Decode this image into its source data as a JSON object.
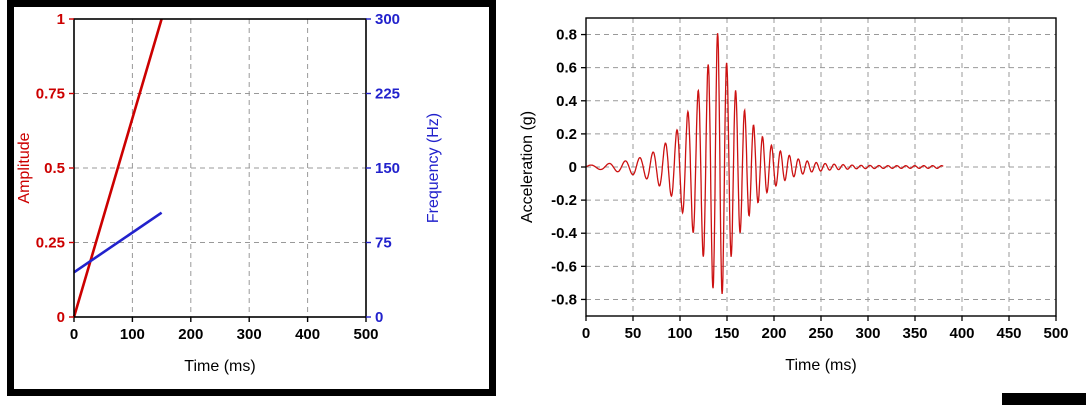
{
  "chart_data": [
    {
      "type": "line",
      "title": "",
      "xlabel": "Time (ms)",
      "ylabel_left": "Amplitude",
      "ylabel_right": "Frequency (Hz)",
      "xlim": [
        0,
        500
      ],
      "ylim_left": [
        0,
        1
      ],
      "ylim_right": [
        0,
        300
      ],
      "x_ticks": [
        0,
        100,
        200,
        300,
        400,
        500
      ],
      "x_tick_labels": [
        "0",
        "100",
        "200",
        "300",
        "400",
        "500"
      ],
      "y_left_ticks": [
        0,
        0.25,
        0.5,
        0.75,
        1
      ],
      "y_left_tick_labels": [
        "0",
        "0.25",
        "0.5",
        "0.75",
        "1"
      ],
      "y_right_ticks": [
        0,
        75,
        150,
        225,
        300
      ],
      "y_right_tick_labels": [
        "0",
        "75",
        "150",
        "225",
        "300"
      ],
      "grid_color": "#999999",
      "axis_color_left": "#cc0000",
      "axis_color_right": "#2222cc",
      "grid_on": true,
      "legend": "none",
      "series": [
        {
          "name": "Amplitude",
          "axis": "left",
          "color": "#cc0000",
          "points": [
            [
              0,
              0
            ],
            [
              150,
              1
            ]
          ]
        },
        {
          "name": "Frequency",
          "axis": "right",
          "color": "#2222cc",
          "points": [
            [
              0,
              45
            ],
            [
              150,
              105
            ]
          ]
        }
      ]
    },
    {
      "type": "line",
      "title": "",
      "xlabel": "Time (ms)",
      "ylabel": "Acceleration (g)",
      "xlim": [
        0,
        500
      ],
      "ylim": [
        -0.9,
        0.9
      ],
      "x_ticks": [
        0,
        50,
        100,
        150,
        200,
        250,
        300,
        350,
        400,
        450,
        500
      ],
      "x_tick_labels": [
        "0",
        "50",
        "100",
        "150",
        "200",
        "250",
        "300",
        "350",
        "400",
        "450",
        "500"
      ],
      "y_ticks": [
        0.8,
        0.6,
        0.4,
        0.2,
        0,
        -0.2,
        -0.4,
        -0.6,
        -0.8
      ],
      "y_tick_labels": [
        "0.8",
        "0.6",
        "0.4",
        "0.2",
        "0",
        "-0.2",
        "-0.4",
        "-0.6",
        "-0.8"
      ],
      "grid_color": "#999999",
      "line_color": "#cc1111",
      "grid_on": true,
      "legend": "none",
      "signal": {
        "name": "Acceleration",
        "type": "linear_swept_sine_burst",
        "t_start_ms": 0,
        "t_end_ms": 380,
        "sample_step_ms": 0.4,
        "freq_start_hz": 45,
        "freq_end_hz": 105,
        "sweep_end_ms": 150,
        "peak_acceleration_g": 0.82,
        "peak_time_ms": 140,
        "envelope_breakpoints": [
          [
            0,
            0.01
          ],
          [
            15,
            0.015
          ],
          [
            30,
            0.025
          ],
          [
            45,
            0.04
          ],
          [
            60,
            0.06
          ],
          [
            75,
            0.1
          ],
          [
            90,
            0.17
          ],
          [
            100,
            0.25
          ],
          [
            110,
            0.35
          ],
          [
            120,
            0.47
          ],
          [
            130,
            0.62
          ],
          [
            138,
            0.8
          ],
          [
            143,
            0.82
          ],
          [
            150,
            0.62
          ],
          [
            158,
            0.48
          ],
          [
            166,
            0.37
          ],
          [
            175,
            0.28
          ],
          [
            185,
            0.2
          ],
          [
            195,
            0.14
          ],
          [
            210,
            0.085
          ],
          [
            225,
            0.05
          ],
          [
            240,
            0.03
          ],
          [
            260,
            0.018
          ],
          [
            290,
            0.01
          ],
          [
            330,
            0.008
          ],
          [
            380,
            0.008
          ]
        ]
      }
    }
  ],
  "decor": {
    "panel_border_color": "#000000",
    "corner_bar_color": "#000000",
    "background_color": "#ffffff"
  }
}
